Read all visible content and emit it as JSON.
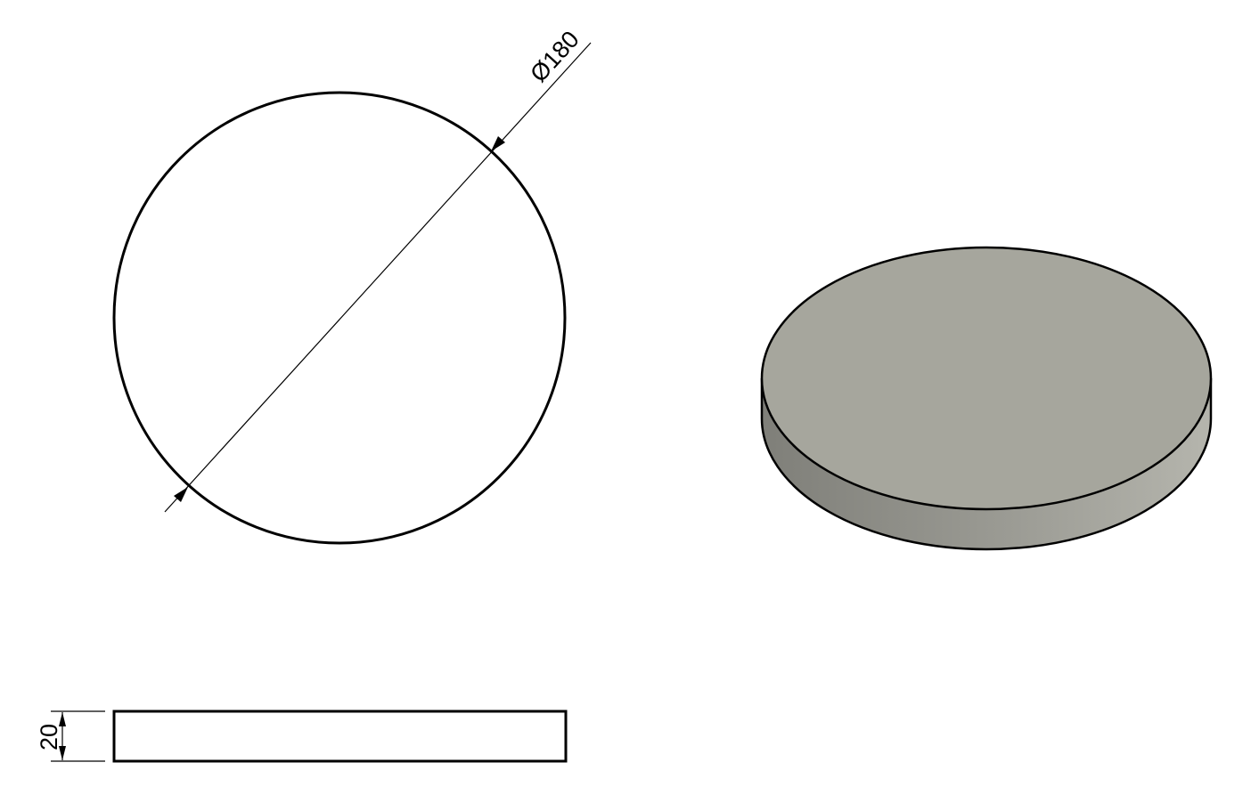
{
  "drawing": {
    "top_view": {
      "diameter_label": "Ø180"
    },
    "side_view": {
      "thickness_label": "20"
    },
    "iso_view": {
      "colors": {
        "top_face": "#a6a69d",
        "side_dark": "#7f7f79",
        "side_light": "#b5b5ad",
        "edge": "#000000"
      }
    }
  }
}
